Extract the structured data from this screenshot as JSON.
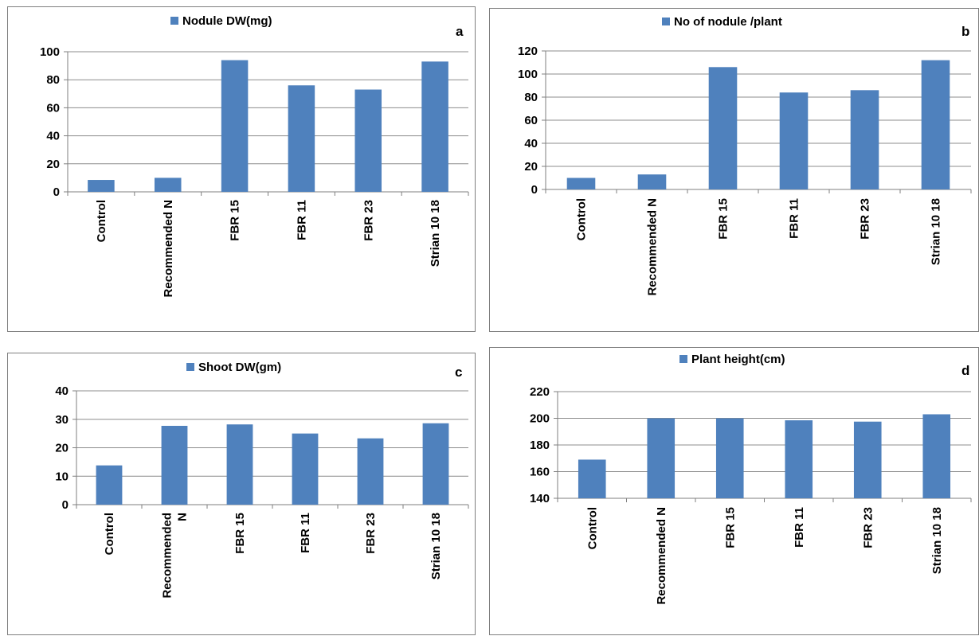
{
  "colors": {
    "bar": "#4f81bd",
    "grid": "#8c8c8c",
    "axis": "#7f7f7f"
  },
  "chart_data": [
    {
      "panel_letter": "a",
      "type": "bar",
      "legend": "top",
      "grid": true,
      "categories": [
        "Control",
        "Recommended N",
        "FBR 15",
        "FBR 11",
        "FBR 23",
        "Strian 10 18"
      ],
      "category_lines": [
        [
          "Control"
        ],
        [
          "Recommended N"
        ],
        [
          "FBR 15"
        ],
        [
          "FBR 11"
        ],
        [
          "FBR 23"
        ],
        [
          "Strian 10 18"
        ]
      ],
      "series": [
        {
          "name": "Nodule DW(mg)",
          "values": [
            8.5,
            10,
            94,
            76,
            73,
            93
          ]
        }
      ],
      "ylim": [
        0,
        100
      ],
      "yticks": [
        0,
        20,
        40,
        60,
        80,
        100
      ]
    },
    {
      "panel_letter": "b",
      "type": "bar",
      "legend": "top",
      "grid": true,
      "categories": [
        "Control",
        "Recommended N",
        "FBR 15",
        "FBR 11",
        "FBR 23",
        "Strian 10 18"
      ],
      "category_lines": [
        [
          "Control"
        ],
        [
          "Recommended N"
        ],
        [
          "FBR 15"
        ],
        [
          "FBR 11"
        ],
        [
          "FBR 23"
        ],
        [
          "Strian 10 18"
        ]
      ],
      "series": [
        {
          "name": "No of nodule /plant",
          "values": [
            10,
            13,
            106,
            84,
            86,
            112
          ]
        }
      ],
      "ylim": [
        0,
        120
      ],
      "yticks": [
        0,
        20,
        40,
        60,
        80,
        100,
        120
      ]
    },
    {
      "panel_letter": "c",
      "type": "bar",
      "legend": "top",
      "grid": true,
      "categories": [
        "Control",
        "Recommended N",
        "FBR 15",
        "FBR 11",
        "FBR 23",
        "Strian 10 18"
      ],
      "category_lines": [
        [
          "Control"
        ],
        [
          "Recommended",
          "N"
        ],
        [
          "FBR 15"
        ],
        [
          "FBR 11"
        ],
        [
          "FBR 23"
        ],
        [
          "Strian 10 18"
        ]
      ],
      "series": [
        {
          "name": "Shoot DW(gm)",
          "values": [
            13.8,
            27.7,
            28.2,
            25,
            23.3,
            28.6
          ]
        }
      ],
      "ylim": [
        0,
        40
      ],
      "yticks": [
        0,
        10,
        20,
        30,
        40
      ]
    },
    {
      "panel_letter": "d",
      "type": "bar",
      "legend": "top",
      "grid": true,
      "categories": [
        "Control",
        "Recommended N",
        "FBR 15",
        "FBR 11",
        "FBR 23",
        "Strian 10 18"
      ],
      "category_lines": [
        [
          "Control"
        ],
        [
          "Recommended N"
        ],
        [
          "FBR 15"
        ],
        [
          "FBR 11"
        ],
        [
          "FBR 23"
        ],
        [
          "Strian 10 18"
        ]
      ],
      "series": [
        {
          "name": "Plant height(cm)",
          "values": [
            169,
            200,
            200,
            198.5,
            197.5,
            203
          ]
        }
      ],
      "ylim": [
        140,
        220
      ],
      "yticks": [
        140,
        160,
        180,
        200,
        220
      ]
    }
  ]
}
